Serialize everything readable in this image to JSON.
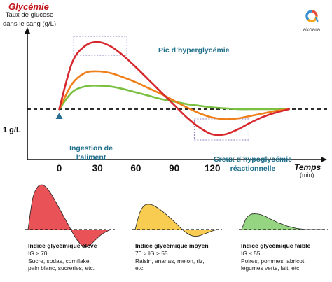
{
  "chart_data": {
    "type": "line",
    "title": "Glycémie",
    "ylabel": "Taux de glucose dans le sang (g/L)",
    "xlabel": "Temps",
    "xunit": "(min)",
    "x_ticks": [
      0,
      30,
      60,
      90,
      120
    ],
    "baseline_label": "1 g/L",
    "baseline_value": 1.0,
    "series": [
      {
        "name": "Indice glycémique élevé",
        "color": "#d7282e",
        "x": [
          0,
          10,
          20,
          30,
          40,
          50,
          60,
          70,
          80,
          90,
          100,
          110,
          120,
          130,
          140,
          150,
          160,
          170,
          180
        ],
        "y": [
          1.0,
          1.55,
          1.75,
          1.8,
          1.75,
          1.64,
          1.5,
          1.35,
          1.2,
          1.05,
          0.9,
          0.78,
          0.7,
          0.7,
          0.76,
          0.84,
          0.91,
          0.96,
          1.0
        ]
      },
      {
        "name": "Indice glycémique moyen",
        "color": "#ef7f1a",
        "x": [
          0,
          10,
          20,
          30,
          40,
          50,
          60,
          70,
          80,
          90,
          100,
          110,
          120,
          130,
          140,
          150,
          160,
          170,
          180
        ],
        "y": [
          1.0,
          1.3,
          1.43,
          1.45,
          1.43,
          1.38,
          1.32,
          1.25,
          1.18,
          1.1,
          1.02,
          0.95,
          0.9,
          0.88,
          0.89,
          0.92,
          0.95,
          0.98,
          1.0
        ]
      },
      {
        "name": "Indice glycémique faible",
        "color": "#7ac142",
        "x": [
          0,
          10,
          20,
          30,
          40,
          50,
          60,
          70,
          80,
          90,
          100,
          110,
          120,
          130,
          140,
          150,
          160,
          170,
          180
        ],
        "y": [
          1.0,
          1.2,
          1.27,
          1.28,
          1.27,
          1.24,
          1.2,
          1.16,
          1.12,
          1.09,
          1.06,
          1.04,
          1.02,
          1.01,
          1.0,
          1.0,
          1.0,
          1.0,
          1.0
        ]
      }
    ],
    "annotations": {
      "peak": "Pic d’hyperglycémie",
      "trough_line1": "Creux d’hypoglycémie",
      "trough_line2": "réactionnelle",
      "ingestion_line1": "Ingestion de",
      "ingestion_line2": "l’aliment"
    },
    "ylim": [
      0.4,
      1.9
    ],
    "xlim": [
      -25,
      195
    ],
    "grid": false
  },
  "logo": {
    "name": "akoara",
    "colors": [
      "#e94e3c",
      "#f4a51c",
      "#3b8fd0"
    ]
  },
  "cards": [
    {
      "title": "Indice glycémique élevé",
      "line1": "IG ≥ 70",
      "line2": "Sucre, sodas, cornflake,",
      "line3": "pain blanc, sucreries, etc.",
      "color": "#e84a4f"
    },
    {
      "title": "Indice glycémique moyen",
      "line1": "70 > IG > 55",
      "line2": "Raisin, ananas, melon, riz,",
      "line3": "etc.",
      "color": "#f7c948"
    },
    {
      "title": "Indice glycémique faible",
      "line1": "IG ≤ 55",
      "line2": "Poires, pommes, abricot,",
      "line3": "légumes verts, lait, etc.",
      "color": "#8fd37a"
    }
  ],
  "colors": {
    "axis": "#111111",
    "annotation": "#1f6f8b",
    "dashed_box": "#8a7fc2",
    "marker": "#2b6f95"
  }
}
